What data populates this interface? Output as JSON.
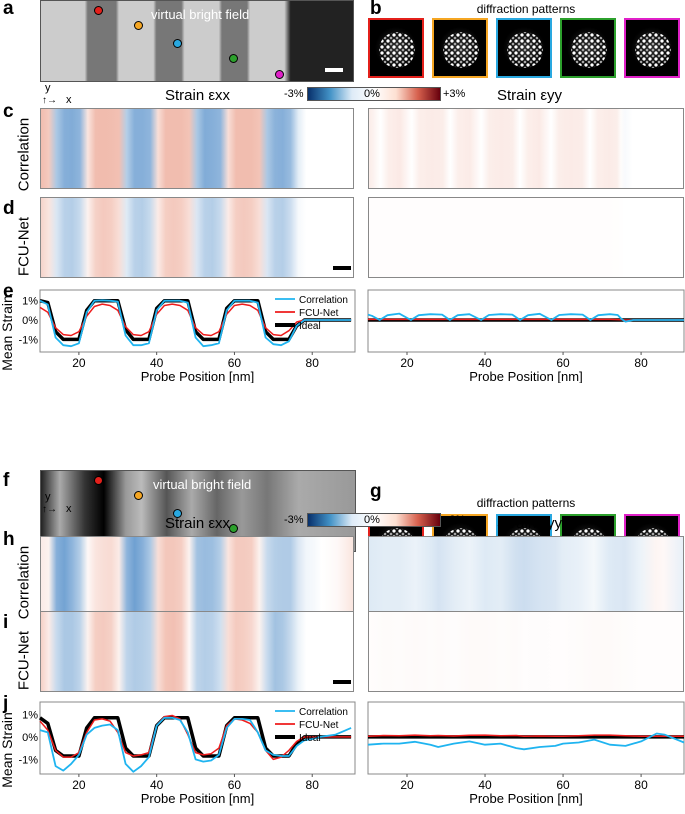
{
  "panels": {
    "a": "a",
    "b": "b",
    "c": "c",
    "d": "d",
    "e": "e",
    "f": "f",
    "g": "g",
    "h": "h",
    "i": "i",
    "j": "j"
  },
  "vbf_title": "virtual bright field",
  "diffraction_title": "diffraction patterns",
  "strain_xx": "Strain εxx",
  "strain_yy": "Strain εyy",
  "colorbar": {
    "min": "-3%",
    "mid": "0%",
    "max": "+3%"
  },
  "axis_mini": {
    "y": "y",
    "x": "x"
  },
  "row_labels": {
    "correlation": "Correlation",
    "fcunet": "FCU-Net"
  },
  "pattern_colors": [
    "#e3201b",
    "#f5a623",
    "#29a8e0",
    "#2ca02c",
    "#e020c8"
  ],
  "colors": {
    "correlation": "#1fb4f0",
    "fcunet": "#ee1c1c",
    "ideal": "#000000"
  },
  "chart_data": [
    {
      "id": "e-xx",
      "type": "line",
      "xlabel": "Probe Position [nm]",
      "ylabel": "Mean Strain",
      "xlim": [
        10,
        91
      ],
      "ylim": [
        -1.65,
        1.55
      ],
      "xticks": [
        "20",
        "40",
        "60",
        "80"
      ],
      "yticks": [
        "1%",
        "0%",
        "-1%"
      ],
      "legend": "top-right",
      "grid": false,
      "x": [
        10,
        12,
        14,
        16,
        18,
        20,
        22,
        24,
        26,
        28,
        30,
        32,
        34,
        36,
        38,
        40,
        42,
        44,
        46,
        48,
        50,
        52,
        54,
        56,
        58,
        60,
        62,
        64,
        66,
        68,
        70,
        72,
        74,
        76,
        78,
        80,
        82,
        84,
        86,
        88,
        90
      ],
      "series": [
        {
          "name": "Correlation",
          "values": [
            1,
            0.8,
            -0.9,
            -1.3,
            -1.35,
            -1.2,
            0.4,
            1,
            1.02,
            1,
            0.95,
            -0.8,
            -1.3,
            -1.3,
            -1.2,
            0.5,
            1,
            1,
            1,
            0.9,
            -0.9,
            -1.35,
            -1.3,
            -1.2,
            0.5,
            1,
            1,
            1,
            0.9,
            -0.9,
            -1.25,
            -1.3,
            -1.1,
            -0.3,
            0,
            0,
            0,
            0,
            0,
            0,
            0
          ]
        },
        {
          "name": "FCU-Net",
          "values": [
            0.65,
            0.4,
            -0.4,
            -0.75,
            -0.8,
            -0.6,
            0.2,
            0.7,
            0.82,
            0.75,
            0.5,
            -0.35,
            -0.75,
            -0.8,
            -0.6,
            0.3,
            0.75,
            0.82,
            0.75,
            0.5,
            -0.4,
            -0.75,
            -0.8,
            -0.6,
            0.3,
            0.75,
            0.82,
            0.75,
            0.5,
            -0.4,
            -0.75,
            -0.8,
            -0.55,
            -0.1,
            0,
            0,
            0,
            0,
            0,
            0,
            0
          ]
        },
        {
          "name": "Ideal",
          "values": [
            1,
            0.9,
            -0.6,
            -1,
            -1,
            -1,
            0.5,
            1,
            1,
            1,
            1,
            -0.5,
            -1,
            -1,
            -1,
            0.6,
            1,
            1,
            1,
            1,
            -0.6,
            -1,
            -1,
            -1,
            0.6,
            1,
            1,
            1,
            1,
            -0.6,
            -1,
            -1,
            -1,
            -0.3,
            0,
            0,
            0,
            0,
            0,
            0,
            0
          ]
        }
      ]
    },
    {
      "id": "e-yy",
      "type": "line",
      "xlabel": "Probe Position [nm]",
      "xlim": [
        10,
        91
      ],
      "ylim": [
        -1.65,
        1.55
      ],
      "xticks": [
        "20",
        "40",
        "60",
        "80"
      ],
      "grid": false,
      "x": [
        10,
        11,
        13,
        15,
        18,
        21,
        23,
        26,
        29,
        31,
        33,
        36,
        39,
        41,
        44,
        47,
        49,
        51,
        54,
        57,
        59,
        62,
        65,
        67,
        69,
        72,
        74,
        75,
        76,
        78,
        82,
        86,
        91
      ],
      "series": [
        {
          "name": "Correlation",
          "values": [
            0.28,
            0.22,
            0,
            0.25,
            0.33,
            0,
            0.25,
            0.3,
            0.28,
            0,
            0.25,
            0.3,
            0,
            0.26,
            0.3,
            0.28,
            0,
            0.25,
            0.32,
            0,
            0.26,
            0.3,
            0.28,
            0,
            0.25,
            0.3,
            0.26,
            0.05,
            -0.08,
            0,
            0,
            0,
            0
          ]
        },
        {
          "name": "FCU-Net",
          "values": [
            0.03,
            0.03,
            0.03,
            0.03,
            0.03,
            0.03,
            0.03,
            0.03,
            0.03,
            0.03,
            0.03,
            0.03,
            0.03,
            0.03,
            0.03,
            0.03,
            0.03,
            0.03,
            0.03,
            0.03,
            0.03,
            0.03,
            0.03,
            0.03,
            0.03,
            0.03,
            0.02,
            0.01,
            0,
            0,
            0,
            0,
            0
          ]
        },
        {
          "name": "Ideal",
          "values": [
            0,
            0,
            0,
            0,
            0,
            0,
            0,
            0,
            0,
            0,
            0,
            0,
            0,
            0,
            0,
            0,
            0,
            0,
            0,
            0,
            0,
            0,
            0,
            0,
            0,
            0,
            0,
            0,
            0,
            0,
            0,
            0,
            0
          ]
        }
      ]
    },
    {
      "id": "j-xx",
      "type": "line",
      "xlabel": "Probe Position [nm]",
      "ylabel": "Mean Strain",
      "xlim": [
        10,
        91
      ],
      "ylim": [
        -1.65,
        1.55
      ],
      "xticks": [
        "20",
        "40",
        "60",
        "80"
      ],
      "yticks": [
        "1%",
        "0%",
        "-1%"
      ],
      "legend": "top-right",
      "grid": false,
      "x": [
        10,
        12,
        14,
        16,
        18,
        20,
        22,
        24,
        26,
        28,
        30,
        32,
        34,
        36,
        38,
        40,
        42,
        44,
        46,
        48,
        50,
        52,
        54,
        56,
        58,
        60,
        62,
        64,
        66,
        68,
        70,
        72,
        74,
        76,
        78,
        80,
        82,
        84,
        86,
        88,
        90
      ],
      "series": [
        {
          "name": "Correlation",
          "values": [
            0.3,
            0.2,
            -1.3,
            -1.5,
            -1.2,
            -0.8,
            0.1,
            0.4,
            0.5,
            0.55,
            0.3,
            -1.2,
            -1.55,
            -1.3,
            -0.9,
            0.5,
            0.85,
            0.85,
            0.75,
            0.2,
            -1,
            -1.1,
            -1.05,
            -0.8,
            0.4,
            0.8,
            0.8,
            0.75,
            0.2,
            -0.6,
            -0.8,
            -0.85,
            -0.85,
            -0.4,
            -0.15,
            -0.1,
            0,
            0.05,
            0.1,
            0.25,
            0.4
          ]
        },
        {
          "name": "FCU-Net",
          "values": [
            0.7,
            0.3,
            -0.6,
            -0.9,
            -0.9,
            -0.7,
            0.2,
            0.75,
            0.8,
            0.7,
            0.2,
            -0.7,
            -0.85,
            -0.8,
            -0.7,
            0.5,
            0.9,
            0.95,
            0.8,
            0.1,
            -0.7,
            -0.8,
            -0.75,
            -0.5,
            0.5,
            0.8,
            0.75,
            0.6,
            0.2,
            -0.6,
            -1,
            -0.9,
            -0.6,
            -0.2,
            0,
            0,
            0,
            0,
            0,
            0,
            0
          ]
        },
        {
          "name": "Ideal",
          "values": [
            0.85,
            0.6,
            -0.6,
            -0.85,
            -0.85,
            -0.85,
            0.4,
            0.85,
            0.85,
            0.85,
            0.85,
            -0.5,
            -0.85,
            -0.85,
            -0.85,
            0.5,
            0.85,
            0.85,
            0.85,
            0.85,
            -0.5,
            -0.85,
            -0.85,
            -0.85,
            0.5,
            0.85,
            0.85,
            0.85,
            0.85,
            -0.5,
            -0.85,
            -0.85,
            -0.85,
            -0.3,
            0,
            0,
            0,
            0,
            0,
            0,
            0
          ]
        }
      ]
    },
    {
      "id": "j-yy",
      "type": "line",
      "xlabel": "Probe Position [nm]",
      "xlim": [
        10,
        91
      ],
      "ylim": [
        -1.65,
        1.55
      ],
      "xticks": [
        "20",
        "40",
        "60",
        "80"
      ],
      "grid": false,
      "x": [
        10,
        14,
        18,
        22,
        26,
        28,
        32,
        36,
        40,
        44,
        48,
        50,
        54,
        58,
        60,
        64,
        68,
        72,
        76,
        80,
        84,
        86,
        91
      ],
      "series": [
        {
          "name": "Correlation",
          "values": [
            -0.35,
            -0.3,
            -0.3,
            -0.22,
            -0.35,
            -0.45,
            -0.3,
            -0.2,
            -0.35,
            -0.3,
            -0.5,
            -0.55,
            -0.45,
            -0.4,
            -0.3,
            -0.25,
            -0.12,
            -0.35,
            -0.4,
            -0.2,
            0.15,
            0.1,
            -0.25
          ]
        },
        {
          "name": "FCU-Net",
          "values": [
            0.03,
            0.06,
            0.05,
            0.08,
            0.05,
            0.06,
            0.04,
            0.07,
            0.08,
            0.05,
            0.06,
            0.03,
            0.04,
            0.03,
            0.03,
            0.05,
            0.08,
            0.08,
            0.05,
            0.03,
            0.03,
            0.03,
            0.03
          ]
        },
        {
          "name": "Ideal",
          "values": [
            0,
            0,
            0,
            0,
            0,
            0,
            0,
            0,
            0,
            0,
            0,
            0,
            0,
            0,
            0,
            0,
            0,
            0,
            0,
            0,
            0,
            0,
            0
          ]
        }
      ]
    }
  ]
}
